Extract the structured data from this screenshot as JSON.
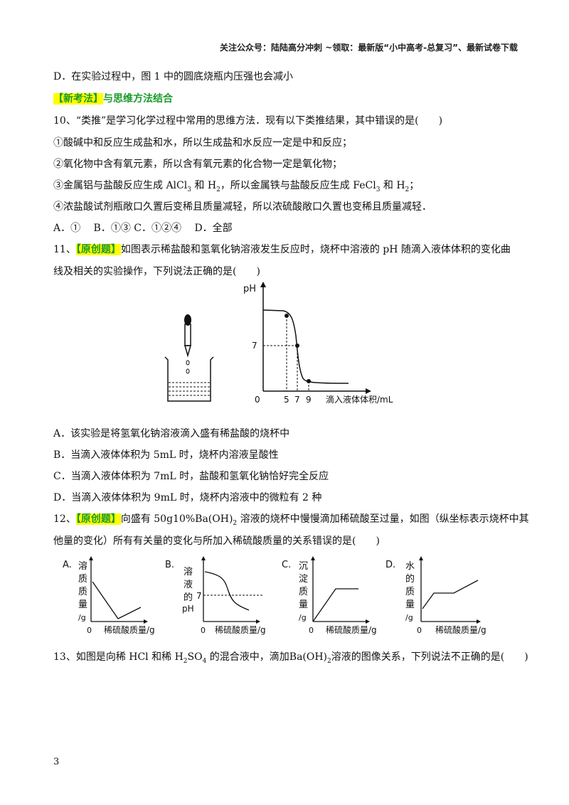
{
  "header": {
    "text": "关注公众号：陆陆高分冲刺 ~领取：最新版“小中高考-总复习”、最新试卷下载"
  },
  "q9_option_d": "D．在实验过程中，图 1 中的圆底烧瓶内压强也会减小",
  "section_tag": {
    "badge": "【新考法】",
    "title": "与思维方法结合"
  },
  "q10": {
    "stem": "10、“类推”是学习化学过程中常用的思维方法．现有以下类推结果，其中错误的是(　　)",
    "s1": "①酸碱中和反应生成盐和水，所以生成盐和水反应一定是中和反应；",
    "s2": "②氧化物中含有氧元素，所以含有氧元素的化合物一定是氧化物；",
    "s3a": "③金属铝与盐酸反应生成 AlCl",
    "s3b": " 和 H",
    "s3c": "，所以金属铁与盐酸反应生成 FeCl",
    "s3d": " 和 H",
    "s3e": "；",
    "sub3": "3",
    "sub2": "2",
    "s4": "④浓盐酸试剂瓶敞口久置后变稀且质量减轻，所以浓硫酸敞口久置也变稀且质量减轻．",
    "options": "A．①　 B．①③ C．①②④　 D．全部"
  },
  "q11": {
    "num": "11、",
    "badge": "【原创题】",
    "stem1": "如图表示稀盐酸和氢氧化钠溶液发生反应时，烧杯中溶液的 pH 随滴入液体体积的变化曲",
    "stem2": "线及相关的实验操作，下列说法正确的是(　　)",
    "chart": {
      "ylabel": "pH",
      "xlabel": "滴入液体体积/mL",
      "origin": "0",
      "ytick": "7",
      "xticks": [
        "5",
        "7",
        "9"
      ]
    },
    "optA": "A．该实验是将氢氧化钠溶液滴入盛有稀盐酸的烧杯中",
    "optB": "B．当滴入液体体积为 5mL 时，烧杯内溶液呈酸性",
    "optC": "C．当滴入液体体积为 7mL 时，盐酸和氢氧化钠恰好完全反应",
    "optD": "D．当滴入液体体积为 9mL 时，烧杯内溶液中的微粒有 2 种"
  },
  "q12": {
    "num": "12、",
    "badge": "【原创题】",
    "stem1a": "向盛有 50g10%Ba(OH)",
    "stem1sub": "2",
    "stem1b": " 溶液的烧杯中慢慢滴加稀硫酸至过量，如图（纵坐标表示烧杯中其",
    "stem2": "他量的变化）所有有关量的变化与所加入稀硫酸质量的关系错误的是(　　)",
    "charts": [
      {
        "letter": "A.",
        "ylabel": [
          "溶",
          "质",
          "质",
          "量",
          "/g"
        ],
        "xlabel": "稀硫酸质量/g",
        "origin": "0"
      },
      {
        "letter": "B.",
        "ylabel": [
          "溶",
          "液",
          "的",
          "pH"
        ],
        "ytick": "7",
        "xlabel": "稀硫酸质量/g",
        "origin": "0"
      },
      {
        "letter": "C.",
        "ylabel": [
          "沉",
          "淀",
          "质",
          "量",
          "/g"
        ],
        "xlabel": "稀硫酸质量/g",
        "origin": "0"
      },
      {
        "letter": "D.",
        "ylabel": [
          "水",
          "的",
          "质",
          "量",
          "/g"
        ],
        "xlabel": "稀硫酸质量/g",
        "origin": "0"
      }
    ]
  },
  "q13": {
    "a": "13、如图是向稀 HCl 和稀 H",
    "sub2": "2",
    "b": "SO",
    "sub4": "4",
    "c": " 的混合液中，滴加Ba(OH)",
    "d": "溶液的图像关系，下列说法不正确的是(　　)"
  },
  "page_number": "3"
}
